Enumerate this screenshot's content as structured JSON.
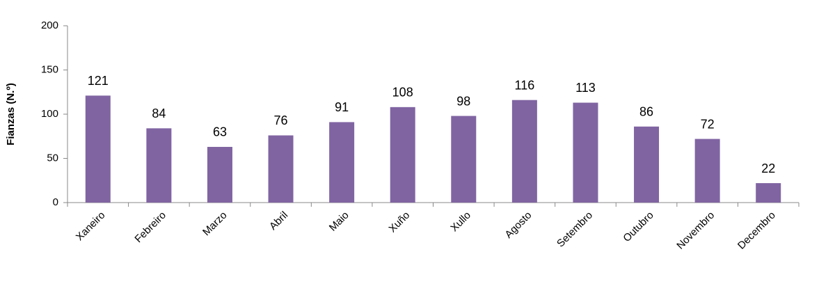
{
  "chart_data": {
    "type": "bar",
    "y_label": "Fianzas (N.º)",
    "categories": [
      "Xaneiro",
      "Febreiro",
      "Marzo",
      "Abril",
      "Maio",
      "Xuño",
      "Xullo",
      "Agosto",
      "Setembro",
      "Outubro",
      "Novembro",
      "Decembro"
    ],
    "values": [
      121,
      84,
      63,
      76,
      91,
      108,
      98,
      116,
      113,
      86,
      72,
      22
    ],
    "color": "#8064a2",
    "ylim": [
      0,
      200
    ],
    "yticks": [
      0,
      50,
      100,
      150,
      200
    ],
    "grid": false
  }
}
